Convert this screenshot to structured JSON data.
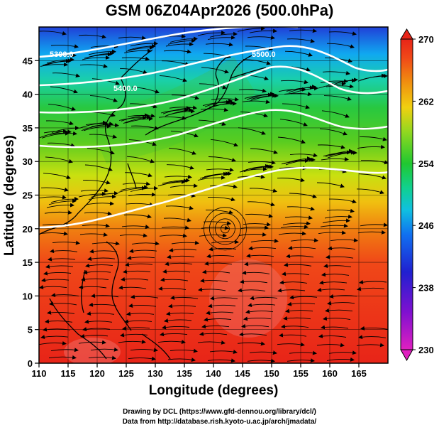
{
  "title": "GSM 06Z04Apr2026 (500.0hPa)",
  "footer": {
    "line1": "Drawing by DCL (https://www.gfd-dennou.org/library/dcl/)",
    "line2": "Data from http://database.rish.kyoto-u.ac.jp/arch/jmadata/"
  },
  "map": {
    "xlabel": "Longitude (degrees)",
    "ylabel": "Latitude  (degrees)",
    "lon_range": [
      110,
      170
    ],
    "lat_range": [
      0,
      50
    ],
    "lon_ticks": [
      110,
      115,
      120,
      125,
      130,
      135,
      140,
      145,
      150,
      155,
      160,
      165
    ],
    "lat_ticks": [
      0,
      5,
      10,
      15,
      20,
      25,
      30,
      35,
      40,
      45
    ],
    "grid": true,
    "contour_labels": [
      "5300.0",
      "5400.0",
      "5500.0"
    ]
  },
  "colorbar": {
    "ticks": [
      270,
      262,
      254,
      246,
      238,
      230
    ],
    "min": 230,
    "max": 270
  }
}
